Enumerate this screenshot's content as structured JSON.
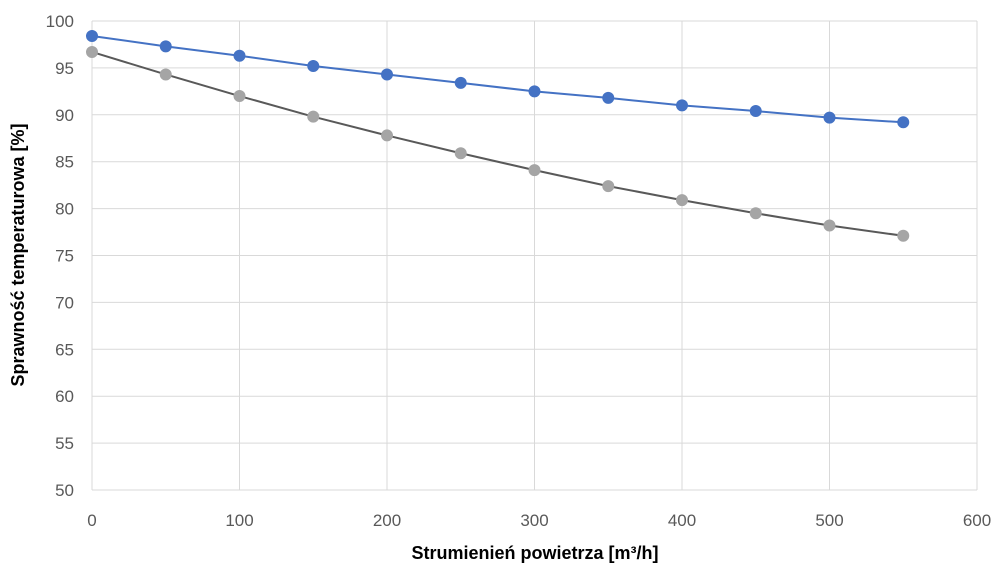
{
  "chart_data": {
    "type": "line",
    "title": "",
    "xlabel": "Strumienień powietrza [m³/h]",
    "ylabel": "Sprawność temperaturowa [%]",
    "xlim": [
      0,
      600
    ],
    "ylim": [
      50,
      100
    ],
    "xticks": [
      0,
      100,
      200,
      300,
      400,
      500,
      600
    ],
    "yticks": [
      50,
      55,
      60,
      65,
      70,
      75,
      80,
      85,
      90,
      95,
      100
    ],
    "grid": true,
    "legend": "none",
    "x": [
      0,
      50,
      100,
      150,
      200,
      250,
      300,
      350,
      400,
      450,
      500,
      550
    ],
    "series": [
      {
        "color": "#4472C4",
        "marker_color": "#4472C4",
        "values": [
          98.4,
          97.3,
          96.3,
          95.2,
          94.3,
          93.4,
          92.5,
          91.8,
          91.0,
          90.4,
          89.7,
          89.2
        ]
      },
      {
        "color": "#595959",
        "marker_color": "#A5A5A5",
        "values": [
          96.7,
          94.3,
          92.0,
          89.8,
          87.8,
          85.9,
          84.1,
          82.4,
          80.9,
          79.5,
          78.2,
          77.1
        ]
      }
    ]
  }
}
